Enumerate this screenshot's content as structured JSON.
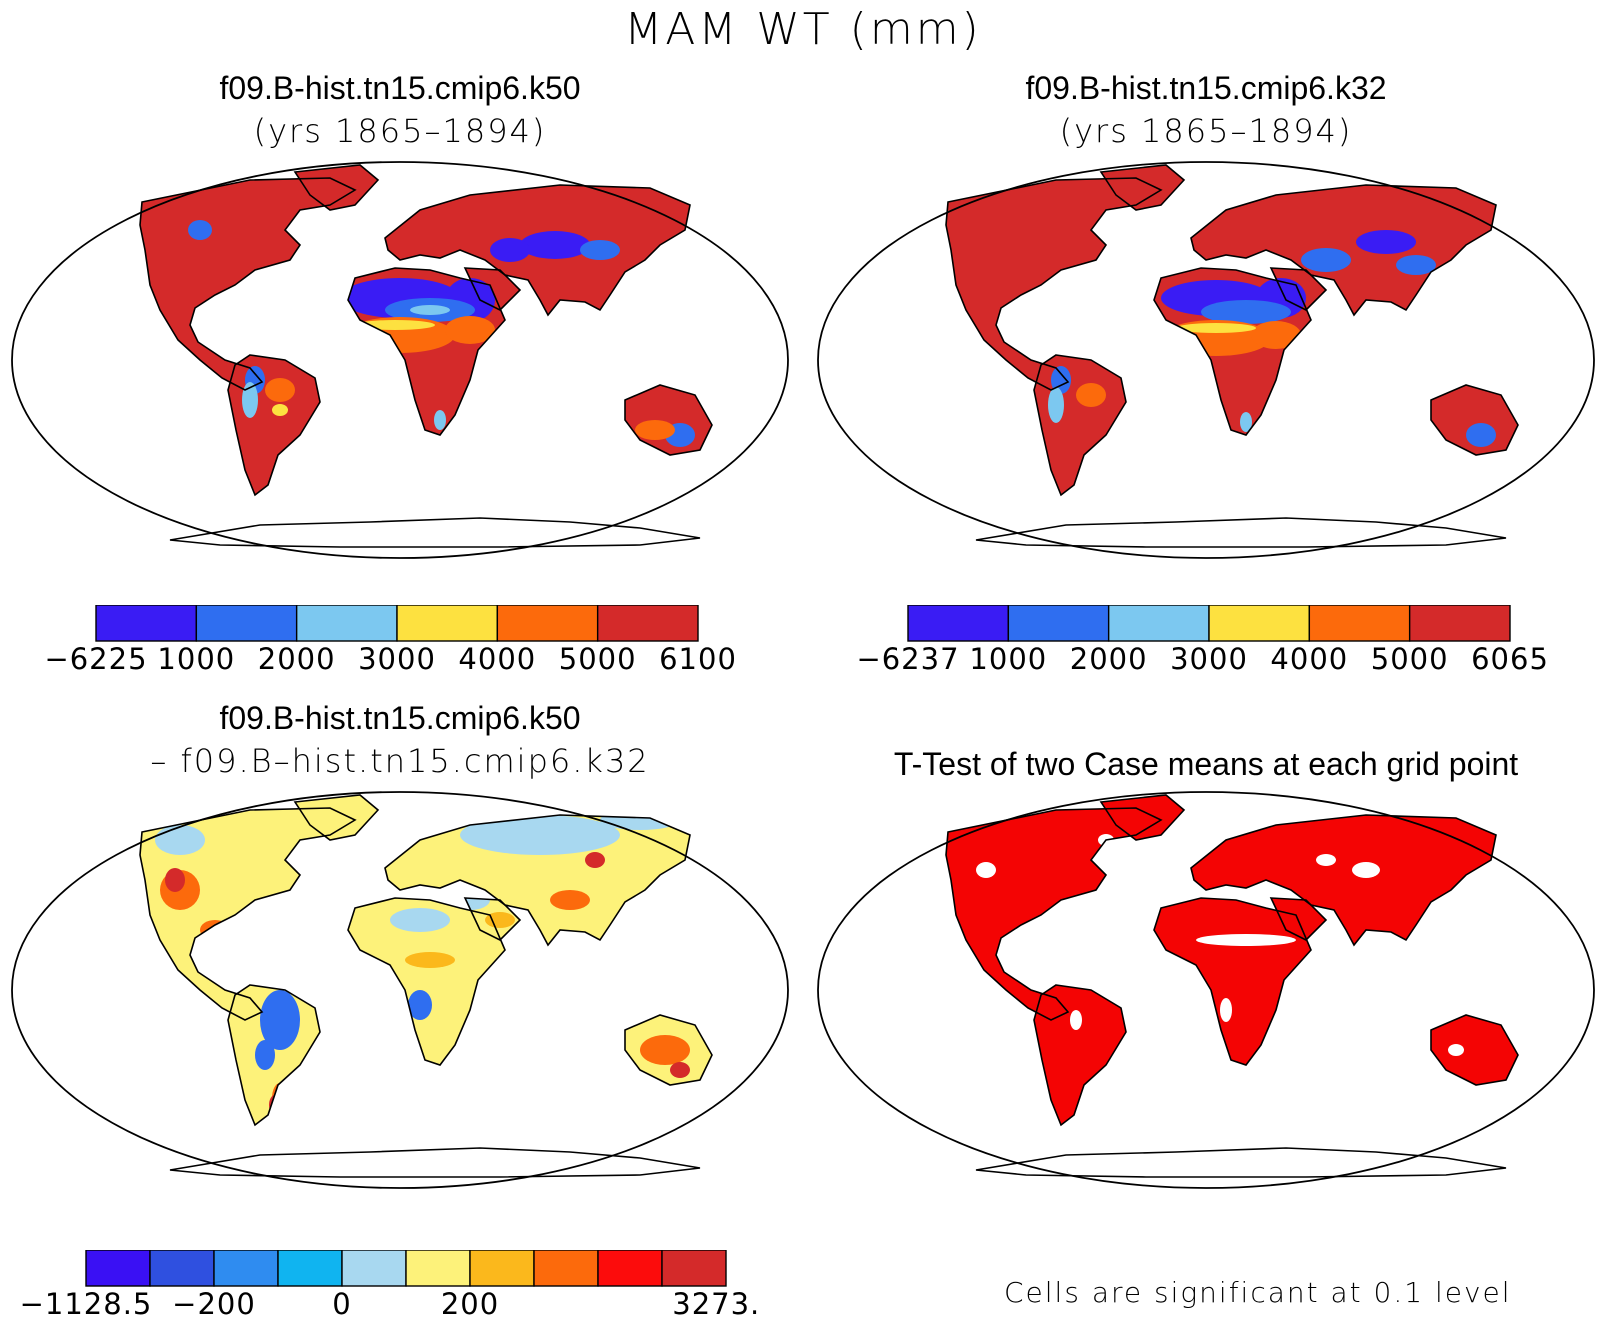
{
  "title": "MAM WT (mm)",
  "panels": [
    {
      "id": "p1",
      "title": "f09.B-hist.tn15.cmip6.k50",
      "subtitle": "(yrs 1865–1894)"
    },
    {
      "id": "p2",
      "title": "f09.B-hist.tn15.cmip6.k32",
      "subtitle": "(yrs 1865–1894)"
    },
    {
      "id": "p3",
      "title": "f09.B-hist.tn15.cmip6.k50",
      "subtitle": "– f09.B–hist.tn15.cmip6.k32"
    },
    {
      "id": "p4",
      "title": "T-Test of two Case means at each grid point",
      "subtitle": ""
    }
  ],
  "colorbars": [
    {
      "id": "cb1",
      "colors": [
        "#3a1cf4",
        "#2f6ef0",
        "#7cc8f0",
        "#fde140",
        "#fc6a0c",
        "#d42a2a"
      ],
      "labels": [
        "−6225",
        "1000",
        "2000",
        "3000",
        "4000",
        "5000",
        "6100"
      ]
    },
    {
      "id": "cb2",
      "colors": [
        "#3a1cf4",
        "#2f6ef0",
        "#7cc8f0",
        "#fde140",
        "#fc6a0c",
        "#d42a2a"
      ],
      "labels": [
        "−6237",
        "1000",
        "2000",
        "3000",
        "4000",
        "5000",
        "6065"
      ]
    },
    {
      "id": "cb3",
      "colors": [
        "#3a10f4",
        "#2f50e0",
        "#2f8cf0",
        "#10b4f0",
        "#a8d8f0",
        "#fdf27a",
        "#fbb81c",
        "#fc6a0c",
        "#fc0c0c",
        "#d42a2a"
      ],
      "labels": [
        "−1128.5",
        "",
        "−200",
        "",
        "0",
        "",
        "200",
        "",
        "",
        "3273.5"
      ]
    }
  ],
  "significance_note": "Cells are significant at 0.1 level",
  "map_colors": {
    "high": "#d42a2a",
    "orange": "#fc6a0c",
    "yellow": "#fde140",
    "lightblue": "#7cc8f0",
    "blue": "#2f6ef0",
    "deep": "#3a1cf4",
    "sig": "#f40404",
    "diffyellow": "#fdf27a",
    "diffblue": "#a8d8f0"
  }
}
